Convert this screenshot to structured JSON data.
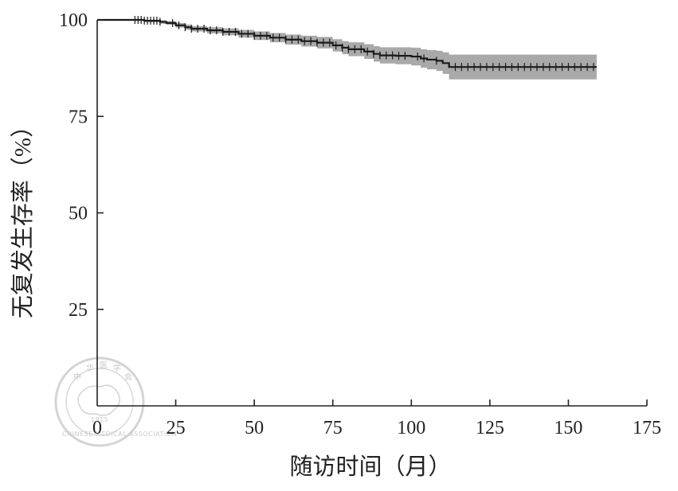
{
  "chart_data": {
    "type": "line",
    "title": "",
    "xlabel": "随访时间（月）",
    "ylabel": "无复发生存率（%）",
    "xlim": [
      0,
      175
    ],
    "ylim": [
      0,
      100
    ],
    "x_ticks": [
      0,
      25,
      50,
      75,
      100,
      125,
      150,
      175
    ],
    "y_ticks": [
      25,
      50,
      75,
      100
    ],
    "x_tick_labels": [
      "0",
      "25",
      "50",
      "75",
      "100",
      "125",
      "150",
      "175"
    ],
    "y_tick_labels": [
      "25",
      "50",
      "75",
      "100"
    ],
    "grid": false,
    "series": [
      {
        "x": [
          0,
          5,
          10,
          15,
          20,
          22,
          25,
          28,
          30,
          35,
          40,
          45,
          50,
          55,
          60,
          65,
          70,
          75,
          78,
          80,
          85,
          88,
          90,
          95,
          100,
          103,
          105,
          108,
          110,
          112,
          115,
          120,
          130,
          140,
          150,
          159
        ],
        "y": [
          100,
          100,
          100,
          99.8,
          99.5,
          99.2,
          98.6,
          98.1,
          97.7,
          97.3,
          96.9,
          96.4,
          95.9,
          95.4,
          94.9,
          94.5,
          94.1,
          93.4,
          92.8,
          92.4,
          91.8,
          91.2,
          90.8,
          90.7,
          90.5,
          90.0,
          89.7,
          89.4,
          88.8,
          87.8,
          87.8,
          87.8,
          87.8,
          87.8,
          87.8,
          87.8
        ],
        "ci_lower": [
          100,
          100,
          99.8,
          99.4,
          99.0,
          98.7,
          98.0,
          97.4,
          97.0,
          96.5,
          96.0,
          95.4,
          94.8,
          94.2,
          93.6,
          93.1,
          92.6,
          91.8,
          91.1,
          90.6,
          89.9,
          89.2,
          88.7,
          88.5,
          88.2,
          87.6,
          87.2,
          86.8,
          86.0,
          84.6,
          84.6,
          84.6,
          84.6,
          84.6,
          84.6,
          84.6
        ],
        "ci_upper": [
          100,
          100,
          100,
          100,
          99.9,
          99.7,
          99.2,
          98.8,
          98.4,
          98.1,
          97.8,
          97.4,
          97.0,
          96.6,
          96.2,
          95.9,
          95.6,
          95.0,
          94.5,
          94.2,
          93.7,
          93.2,
          92.9,
          92.9,
          92.8,
          92.4,
          92.2,
          92.0,
          91.6,
          91.0,
          91.0,
          91.0,
          91.0,
          91.0,
          91.0,
          91.0
        ],
        "censored_x": [
          12,
          13,
          14,
          15,
          16,
          17,
          18,
          19,
          20,
          24,
          26,
          28,
          30,
          32,
          34,
          36,
          38,
          40,
          42,
          44,
          46,
          48,
          50,
          52,
          54,
          56,
          58,
          60,
          62,
          64,
          66,
          68,
          70,
          72,
          74,
          76,
          78,
          80,
          82,
          84,
          86,
          88,
          90,
          92,
          94,
          96,
          98,
          102,
          104,
          108,
          114,
          116,
          118,
          120,
          122,
          124,
          126,
          128,
          130,
          132,
          134,
          136,
          138,
          140,
          142,
          144,
          146,
          148,
          150,
          152,
          154,
          156,
          158
        ]
      }
    ]
  },
  "seal": {
    "cn": "中华医学会",
    "year": "1915",
    "en": "CHINESE MEDICAL ASSOCIATION"
  }
}
